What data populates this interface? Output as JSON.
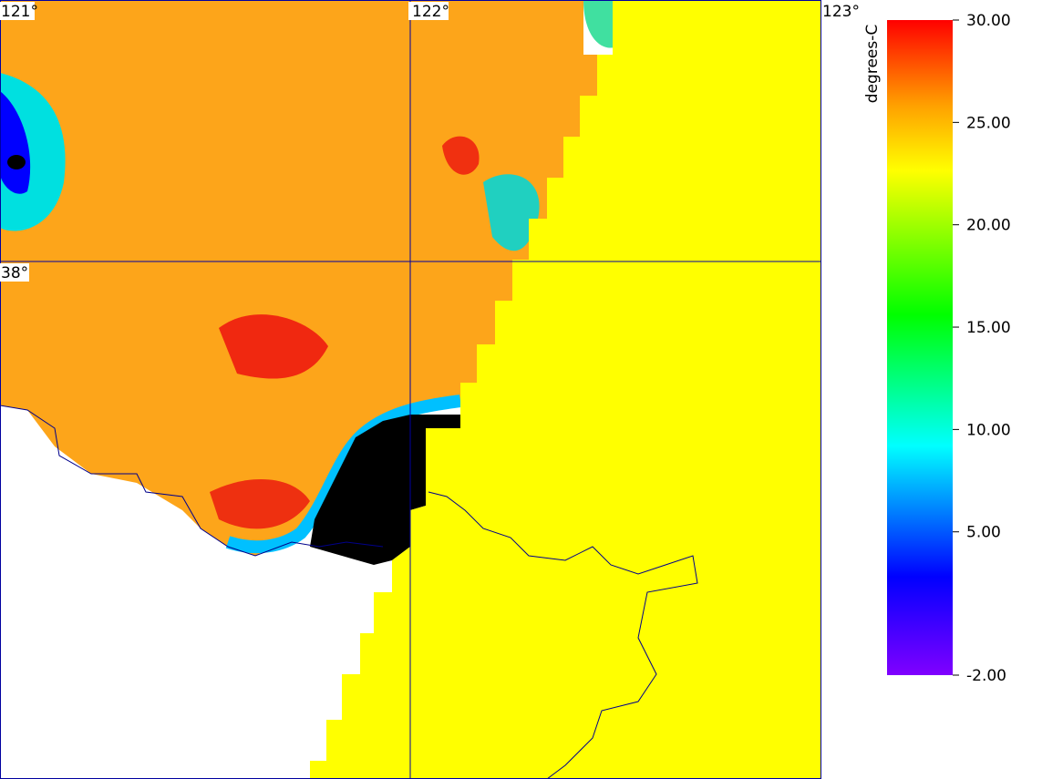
{
  "map": {
    "lon_labels": [
      "121°",
      "122°",
      "123°"
    ],
    "lat_labels": [
      "38°"
    ]
  },
  "colorbar": {
    "title": "degrees-C",
    "ticks": [
      {
        "value": 30,
        "label": "30.00"
      },
      {
        "value": 25,
        "label": "25.00"
      },
      {
        "value": 20,
        "label": "20.00"
      },
      {
        "value": 15,
        "label": "15.00"
      },
      {
        "value": 10,
        "label": "10.00"
      },
      {
        "value": 5,
        "label": "5.00"
      },
      {
        "value": -2,
        "label": "-2.00"
      }
    ]
  }
}
